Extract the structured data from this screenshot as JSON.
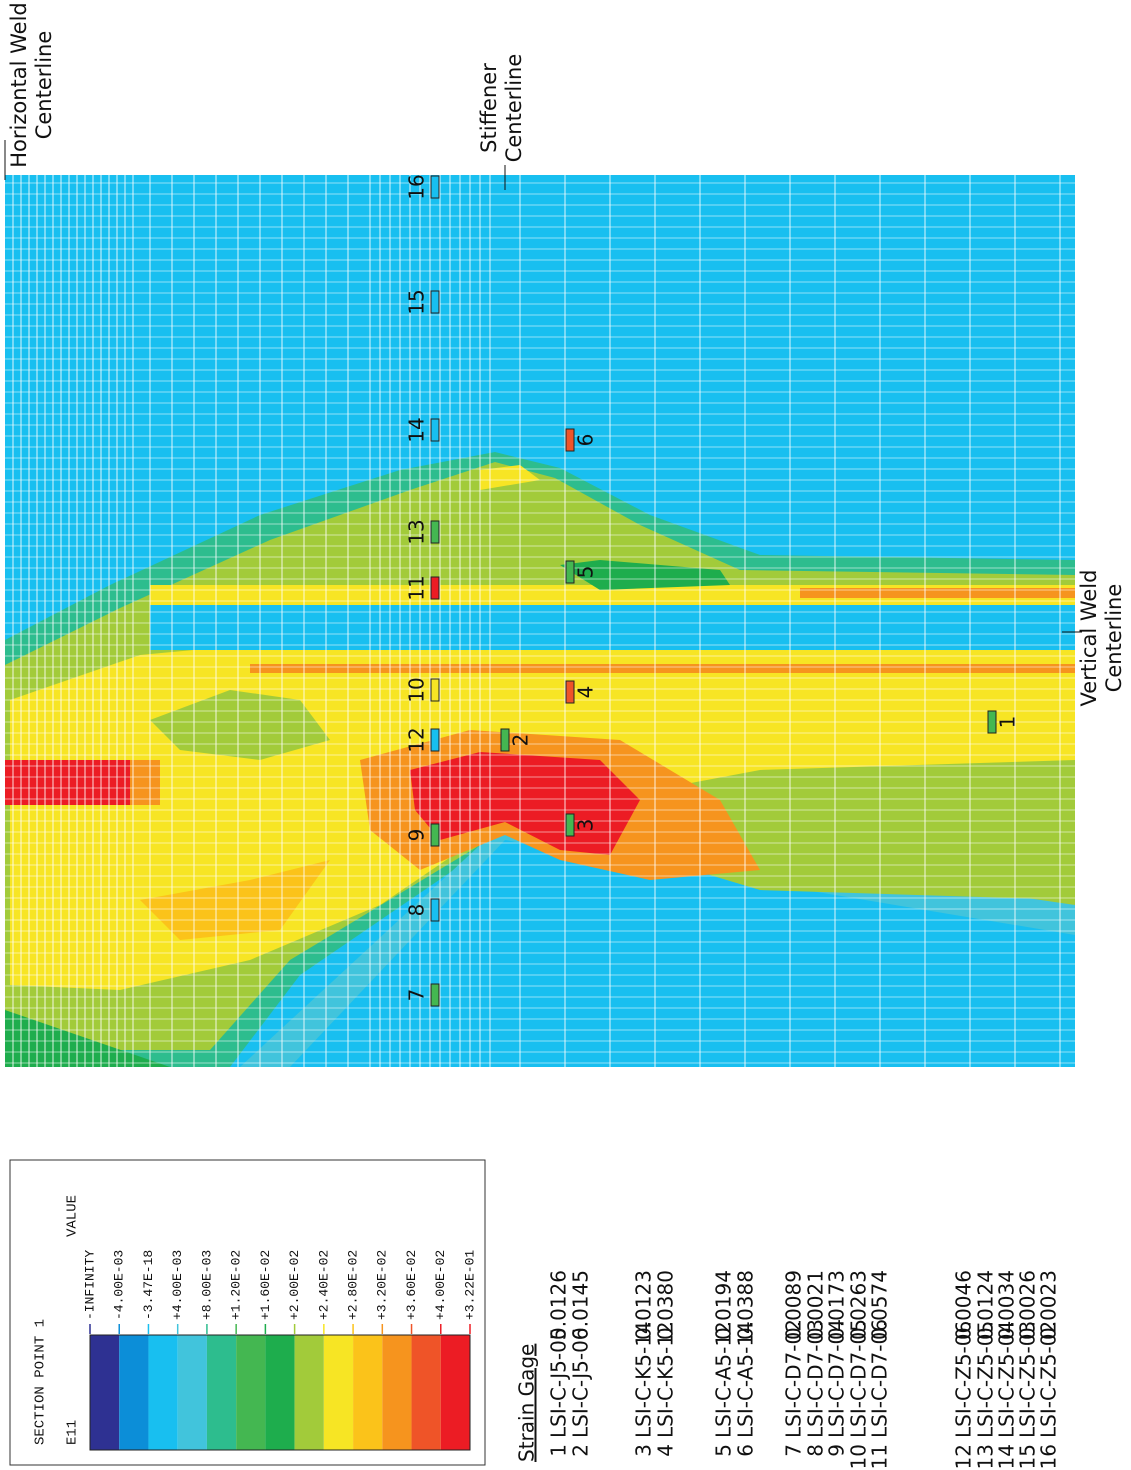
{
  "labels": {
    "horizontal_weld": [
      "Horizontal Weld",
      "Centerline"
    ],
    "stiffener": [
      "Stiffener",
      "Centerline"
    ],
    "vertical_weld": [
      "Vertical Weld",
      "Centerline"
    ]
  },
  "legend": {
    "title": "SECTION POINT 1",
    "variable": "E11",
    "value_header": "VALUE",
    "values": [
      "-INFINITY",
      "-4.00E-03",
      "-3.47E-18",
      "+4.00E-03",
      "+8.00E-03",
      "+1.20E-02",
      "+1.60E-02",
      "+2.00E-02",
      "+2.40E-02",
      "+2.80E-02",
      "+3.20E-02",
      "+3.60E-02",
      "+4.00E-02",
      "+3.22E-01"
    ],
    "colors": [
      "#2e3192",
      "#0c8ed8",
      "#18bff0",
      "#41c4dc",
      "#2dbd8e",
      "#44b751",
      "#1ead4d",
      "#a2cb3a",
      "#f7e524",
      "#fbc31a",
      "#f6941e",
      "#ef5428",
      "#ec1c24"
    ]
  },
  "strain_gage": {
    "title": "Strain Gage",
    "gages": [
      {
        "id": "1",
        "name": "LSI-C-J5-05",
        "value": "0.0126"
      },
      {
        "id": "2",
        "name": "LSI-C-J5-06",
        "value": "0.0145"
      },
      {
        "id": "3",
        "name": "LSI-C-K5-14",
        "value": "0.0123"
      },
      {
        "id": "4",
        "name": "LSI-C-K5-12",
        "value": "0.0380"
      },
      {
        "id": "5",
        "name": "LSI-C-A5-12",
        "value": "0.0194"
      },
      {
        "id": "6",
        "name": "LSI-C-A5-14",
        "value": "0.0388"
      },
      {
        "id": "7",
        "name": "LSI-C-D7-02",
        "value": "0.0089"
      },
      {
        "id": "8",
        "name": "LSI-C-D7-03",
        "value": "0.0021"
      },
      {
        "id": "9",
        "name": "LSI-C-D7-04",
        "value": "0.0173"
      },
      {
        "id": "10",
        "name": "LSI-C-D7-05",
        "value": "0.0263"
      },
      {
        "id": "11",
        "name": "LSI-C-D7-06",
        "value": "0.0574"
      },
      {
        "id": "12",
        "name": "LSI-C-Z5-06",
        "value": "0.0046"
      },
      {
        "id": "13",
        "name": "LSI-C-Z5-05",
        "value": "0.0124"
      },
      {
        "id": "14",
        "name": "LSI-C-Z5-04",
        "value": "0.0034"
      },
      {
        "id": "15",
        "name": "LSI-C-Z5-03",
        "value": "0.0026"
      },
      {
        "id": "16",
        "name": "LSI-C-Z5-02",
        "value": "0.0023"
      }
    ]
  }
}
